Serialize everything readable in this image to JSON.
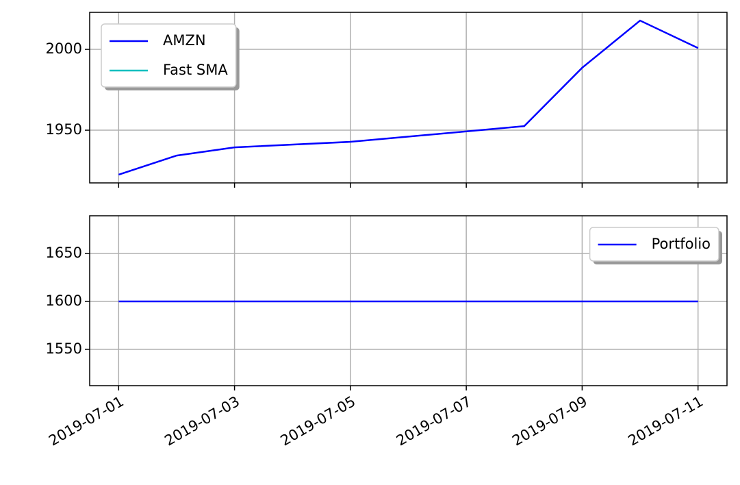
{
  "chart_data": [
    {
      "type": "line",
      "x": [
        "2019-07-01",
        "2019-07-02",
        "2019-07-03",
        "2019-07-05",
        "2019-07-08",
        "2019-07-09",
        "2019-07-10",
        "2019-07-11"
      ],
      "series": [
        {
          "name": "AMZN",
          "color": "#0000ff",
          "values": [
            1922.5,
            1934.3,
            1939.4,
            1942.8,
            1952.5,
            1988.6,
            2017.8,
            2000.8
          ]
        },
        {
          "name": "Fast SMA",
          "color": "#00bfbf",
          "values": [
            null,
            null,
            null,
            null,
            null,
            null,
            null,
            null
          ]
        }
      ],
      "xlim": [
        "2019-06-30T12:00",
        "2019-07-11T12:00"
      ],
      "ylim": [
        1917.4,
        2022.9
      ],
      "yticks": [
        1950,
        2000
      ],
      "grid": true,
      "legend": "upper left"
    },
    {
      "type": "line",
      "x": [
        "2019-07-01",
        "2019-07-02",
        "2019-07-03",
        "2019-07-05",
        "2019-07-08",
        "2019-07-09",
        "2019-07-10",
        "2019-07-11"
      ],
      "series": [
        {
          "name": "Portfolio",
          "color": "#0000ff",
          "values": [
            1600,
            1600,
            1600,
            1600,
            1600,
            1600,
            1600,
            1600
          ]
        }
      ],
      "xlim": [
        "2019-06-30T12:00",
        "2019-07-11T12:00"
      ],
      "xticks": [
        "2019-07-01",
        "2019-07-03",
        "2019-07-05",
        "2019-07-07",
        "2019-07-09",
        "2019-07-11"
      ],
      "ylim": [
        1512.1,
        1689.3
      ],
      "yticks": [
        1550,
        1600,
        1650
      ],
      "grid": true,
      "legend": "upper right"
    }
  ]
}
